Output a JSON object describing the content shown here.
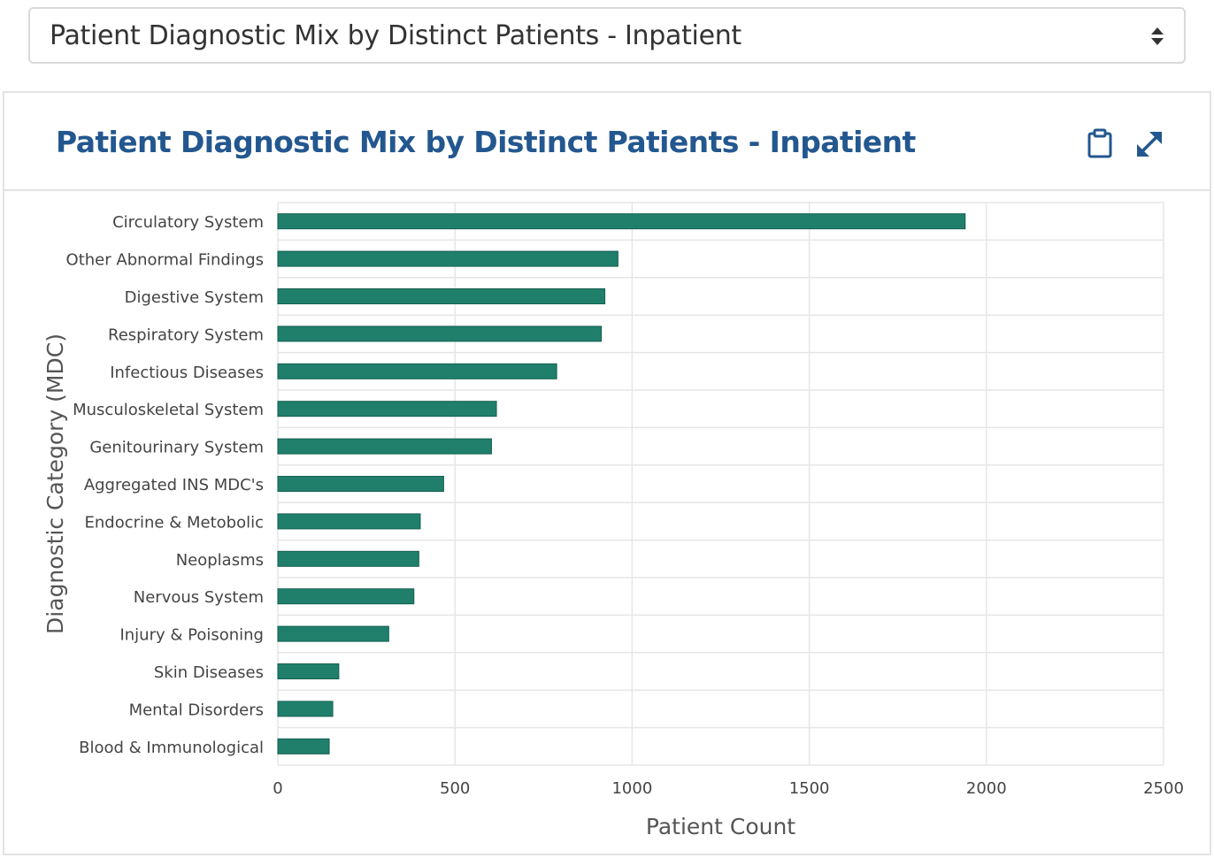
{
  "selector": {
    "value": "Patient Diagnostic Mix by Distinct Patients - Inpatient"
  },
  "panel": {
    "title": "Patient Diagnostic Mix by Distinct Patients - Inpatient",
    "icons": {
      "copy": "clipboard-icon",
      "expand": "expand-icon"
    }
  },
  "colors": {
    "bar": "#1f7f6b",
    "title": "#23578f",
    "grid": "#e6e6e6"
  },
  "chart_data": {
    "type": "bar",
    "orientation": "horizontal",
    "title": "",
    "xlabel": "Patient Count",
    "ylabel": "Diagnostic Category (MDC)",
    "xlim": [
      0,
      2500
    ],
    "xticks": [
      0,
      500,
      1000,
      1500,
      2000,
      2500
    ],
    "grid": true,
    "categories": [
      "Circulatory System",
      "Other Abnormal Findings",
      "Digestive System",
      "Respiratory System",
      "Infectious Diseases",
      "Musculoskeletal System",
      "Genitourinary System",
      "Aggregated INS MDC's",
      "Endocrine & Metobolic",
      "Neoplasms",
      "Nervous System",
      "Injury & Poisoning",
      "Skin Diseases",
      "Mental Disorders",
      "Blood & Immunological"
    ],
    "values": [
      1940,
      960,
      923,
      913,
      787,
      617,
      603,
      468,
      402,
      398,
      384,
      313,
      172,
      155,
      145
    ]
  }
}
